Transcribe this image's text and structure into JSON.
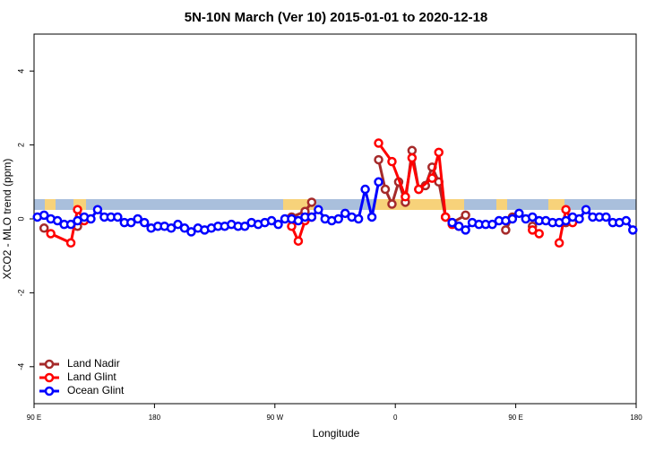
{
  "chart_data": {
    "type": "line",
    "title": "5N-10N March (Ver 10)   2015-01-01 to 2020-12-18",
    "xlabel": "Longitude",
    "ylabel": "XCO2 - MLO trend (ppm)",
    "xlim": [
      90,
      540
    ],
    "ylim": [
      -5,
      5
    ],
    "xticks": [
      {
        "value": 90,
        "label": "90 E"
      },
      {
        "value": 180,
        "label": "180"
      },
      {
        "value": 270,
        "label": "90 W"
      },
      {
        "value": 360,
        "label": "0"
      },
      {
        "value": 450,
        "label": "90 E"
      },
      {
        "value": 540,
        "label": "180"
      }
    ],
    "yticks": [
      -4,
      -2,
      0,
      2,
      4
    ],
    "grid": false,
    "legend": "bottom-left",
    "series": [
      {
        "name": "Land Nadir",
        "color": "#a52a2a",
        "x": [
          97.5,
          110,
          122.5,
          200,
          282.5,
          292.5,
          297.5,
          320,
          347.5,
          352.5,
          357.5,
          362.5,
          367.5,
          372.5,
          377.5,
          382.5,
          387.5,
          392.5,
          397.5,
          402.5,
          412.5,
          430,
          442.5,
          447.5,
          455,
          462.5,
          475,
          487.5
        ],
        "values": [
          -0.25,
          null,
          -0.2,
          null,
          0.05,
          0.2,
          0.45,
          null,
          1.6,
          0.8,
          0.4,
          1.0,
          0.45,
          1.85,
          0.8,
          0.9,
          1.4,
          1.0,
          0.05,
          -0.1,
          0.1,
          null,
          -0.3,
          0.05,
          null,
          -0.2,
          null,
          -0.1
        ]
      },
      {
        "name": "Land Glint",
        "color": "#ff0000",
        "x": [
          102.5,
          117.5,
          122.5,
          127.5,
          200,
          282.5,
          287.5,
          292.5,
          297.5,
          320,
          347.5,
          357.5,
          367.5,
          372.5,
          377.5,
          387.5,
          392.5,
          397.5,
          402.5,
          407.5,
          440,
          462.5,
          467.5,
          475,
          482.5,
          487.5,
          492.5
        ],
        "values": [
          -0.4,
          -0.65,
          0.25,
          -0.05,
          null,
          -0.2,
          -0.6,
          -0.05,
          0.05,
          null,
          2.05,
          1.55,
          0.6,
          1.65,
          0.8,
          1.1,
          1.8,
          0.05,
          -0.15,
          -0.2,
          null,
          -0.3,
          -0.4,
          null,
          -0.65,
          0.25,
          -0.1
        ]
      },
      {
        "name": "Ocean Glint",
        "color": "#0000ff",
        "x": [
          92.5,
          97.5,
          102.5,
          107.5,
          112.5,
          117.5,
          122.5,
          127.5,
          132.5,
          137.5,
          142.5,
          147.5,
          152.5,
          157.5,
          162.5,
          167.5,
          172.5,
          177.5,
          182.5,
          187.5,
          192.5,
          197.5,
          202.5,
          207.5,
          212.5,
          217.5,
          222.5,
          227.5,
          232.5,
          237.5,
          242.5,
          247.5,
          252.5,
          257.5,
          262.5,
          267.5,
          272.5,
          277.5,
          282.5,
          287.5,
          292.5,
          297.5,
          302.5,
          307.5,
          312.5,
          317.5,
          322.5,
          327.5,
          332.5,
          337.5,
          342.5,
          347.5,
          375,
          402.5,
          407.5,
          412.5,
          417.5,
          422.5,
          427.5,
          432.5,
          437.5,
          442.5,
          447.5,
          452.5,
          457.5,
          462.5,
          467.5,
          472.5,
          477.5,
          482.5,
          487.5,
          492.5,
          497.5,
          502.5,
          507.5,
          512.5,
          517.5,
          522.5,
          527.5,
          532.5,
          537.5
        ],
        "values": [
          0.05,
          0.1,
          0.0,
          -0.05,
          -0.15,
          -0.15,
          -0.05,
          0.05,
          0.0,
          0.25,
          0.05,
          0.05,
          0.05,
          -0.1,
          -0.1,
          0.0,
          -0.1,
          -0.25,
          -0.2,
          -0.2,
          -0.25,
          -0.15,
          -0.25,
          -0.35,
          -0.25,
          -0.3,
          -0.25,
          -0.2,
          -0.2,
          -0.15,
          -0.2,
          -0.2,
          -0.1,
          -0.15,
          -0.1,
          -0.05,
          -0.15,
          0.0,
          0.0,
          -0.05,
          0.05,
          0.05,
          0.25,
          0.0,
          -0.05,
          0.0,
          0.15,
          0.05,
          0.0,
          0.8,
          0.05,
          1.0,
          null,
          -0.1,
          -0.2,
          -0.3,
          -0.1,
          -0.15,
          -0.15,
          -0.15,
          -0.05,
          -0.05,
          0.0,
          0.15,
          0.0,
          0.05,
          -0.05,
          -0.05,
          -0.1,
          -0.1,
          -0.05,
          0.05,
          0.0,
          0.25,
          0.05,
          0.05,
          0.05,
          -0.1,
          -0.1,
          -0.05,
          -0.3
        ]
      }
    ]
  }
}
